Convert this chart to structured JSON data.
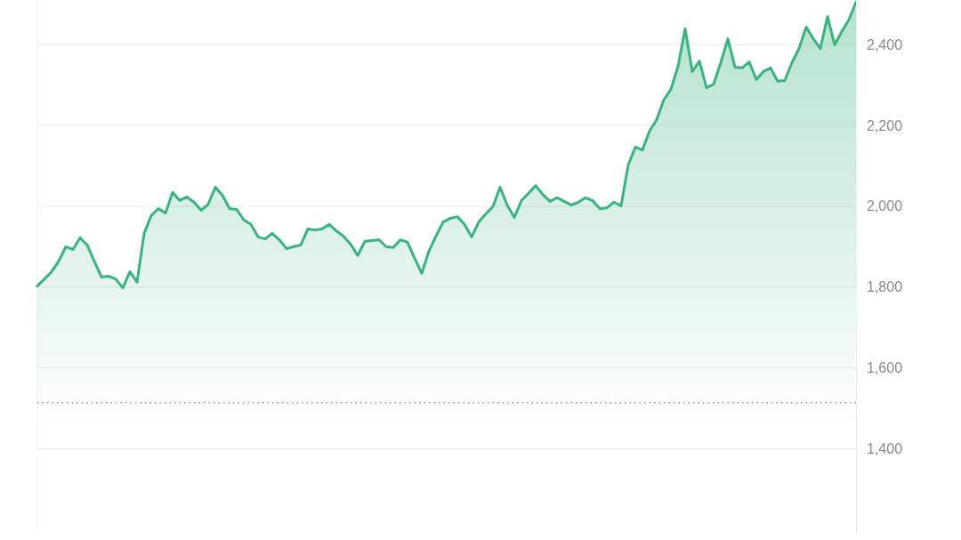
{
  "chart_data": {
    "type": "area",
    "categories": [
      null,
      null,
      null,
      null,
      null,
      null,
      null,
      null,
      null,
      null,
      null,
      null,
      null,
      null,
      null,
      null,
      null,
      null,
      null,
      null,
      null,
      null,
      null,
      null,
      null,
      null,
      null,
      null,
      null,
      null,
      null,
      null,
      null,
      null,
      null,
      null,
      null,
      null,
      null,
      null,
      null,
      null,
      null,
      null,
      null,
      null,
      null,
      null,
      null,
      null,
      null,
      null,
      null,
      null,
      null,
      null,
      null,
      null,
      null,
      null,
      null,
      null,
      null,
      null,
      null,
      null,
      null,
      null,
      null,
      null,
      null,
      null,
      null,
      null,
      null,
      null,
      null,
      null,
      null,
      null,
      null,
      null,
      null,
      null,
      null,
      null,
      null,
      null,
      null,
      null,
      null,
      null,
      null,
      null,
      null,
      null,
      null,
      null,
      null,
      null,
      null,
      null,
      null,
      null,
      null,
      null,
      null,
      null,
      null,
      null,
      null,
      null,
      null,
      null,
      null,
      null
    ],
    "values": [
      1803,
      1820,
      1838,
      1864,
      1900,
      1893,
      1922,
      1904,
      1864,
      1825,
      1827,
      1820,
      1798,
      1838,
      1812,
      1933,
      1977,
      1994,
      1983,
      2034,
      2014,
      2023,
      2010,
      1990,
      2005,
      2047,
      2027,
      1994,
      1992,
      1966,
      1955,
      1924,
      1919,
      1933,
      1917,
      1895,
      1900,
      1904,
      1944,
      1941,
      1944,
      1955,
      1939,
      1926,
      1906,
      1878,
      1913,
      1915,
      1917,
      1900,
      1898,
      1917,
      1911,
      1871,
      1834,
      1889,
      1926,
      1961,
      1970,
      1974,
      1955,
      1924,
      1961,
      1981,
      1999,
      2047,
      2003,
      1972,
      2014,
      2032,
      2051,
      2029,
      2012,
      2021,
      2012,
      2003,
      2010,
      2021,
      2014,
      1994,
      1996,
      2010,
      2001,
      2102,
      2146,
      2139,
      2186,
      2214,
      2263,
      2289,
      2346,
      2439,
      2333,
      2359,
      2293,
      2302,
      2355,
      2414,
      2344,
      2342,
      2357,
      2313,
      2333,
      2342,
      2309,
      2311,
      2355,
      2390,
      2443,
      2414,
      2390,
      2469,
      2399,
      2432,
      2461,
      2505
    ],
    "color": "#3bb37e",
    "ylim": [
      1190,
      2510
    ],
    "yticks": [
      {
        "value": 1400,
        "label": "1,400"
      },
      {
        "value": 1600,
        "label": "1,600"
      },
      {
        "value": 1800,
        "label": "1,800"
      },
      {
        "value": 2000,
        "label": "2,000"
      },
      {
        "value": 2200,
        "label": "2,200"
      },
      {
        "value": 2400,
        "label": "2,400"
      }
    ],
    "grid": "y",
    "tick_labels": "y",
    "ref_lines": [
      {
        "axis": "y",
        "value": 1514,
        "line_style": "dotted",
        "color": "#9a9a9a"
      }
    ]
  }
}
